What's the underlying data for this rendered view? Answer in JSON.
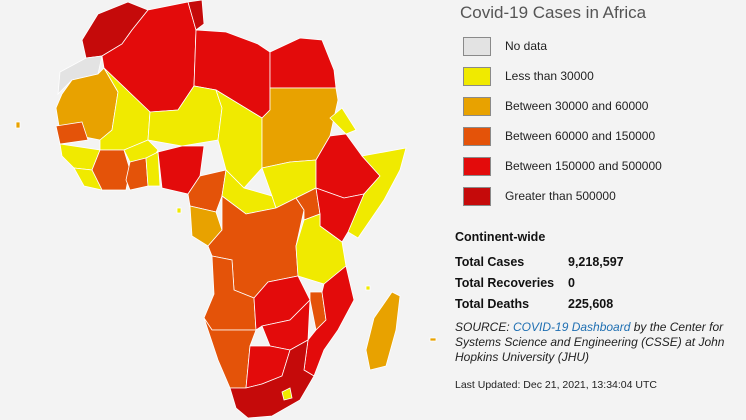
{
  "title": "Covid-19 Cases in Africa",
  "colors": {
    "no_data": "#e3e3e3",
    "lt30k": "#f0ea00",
    "b30_60k": "#e8a200",
    "b60_150k": "#e45309",
    "b150_500k": "#e30b0b",
    "gt500k": "#c50a0a"
  },
  "legend": [
    {
      "label": "No data",
      "color": "#e3e3e3"
    },
    {
      "label": "Less than 30000",
      "color": "#f0ea00"
    },
    {
      "label": "Between 30000 and 60000",
      "color": "#e8a200"
    },
    {
      "label": "Between 60000 and 150000",
      "color": "#e45309"
    },
    {
      "label": "Between 150000 and 500000",
      "color": "#e30b0b"
    },
    {
      "label": "Greater than 500000",
      "color": "#c50a0a"
    }
  ],
  "stats": {
    "heading": "Continent-wide",
    "total_cases_label": "Total Cases",
    "total_cases_value": "9,218,597",
    "total_recoveries_label": "Total Recoveries",
    "total_recoveries_value": "0",
    "total_deaths_label": "Total Deaths",
    "total_deaths_value": "225,608"
  },
  "source": {
    "prefix": "SOURCE: ",
    "link_text": "COVID-19 Dashboard",
    "suffix": " by the Center for Systems Science and Engineering (CSSE) at John Hopkins University (JHU)"
  },
  "last_updated": "Last Updated: Dec 21, 2021, 13:34:04 UTC"
}
